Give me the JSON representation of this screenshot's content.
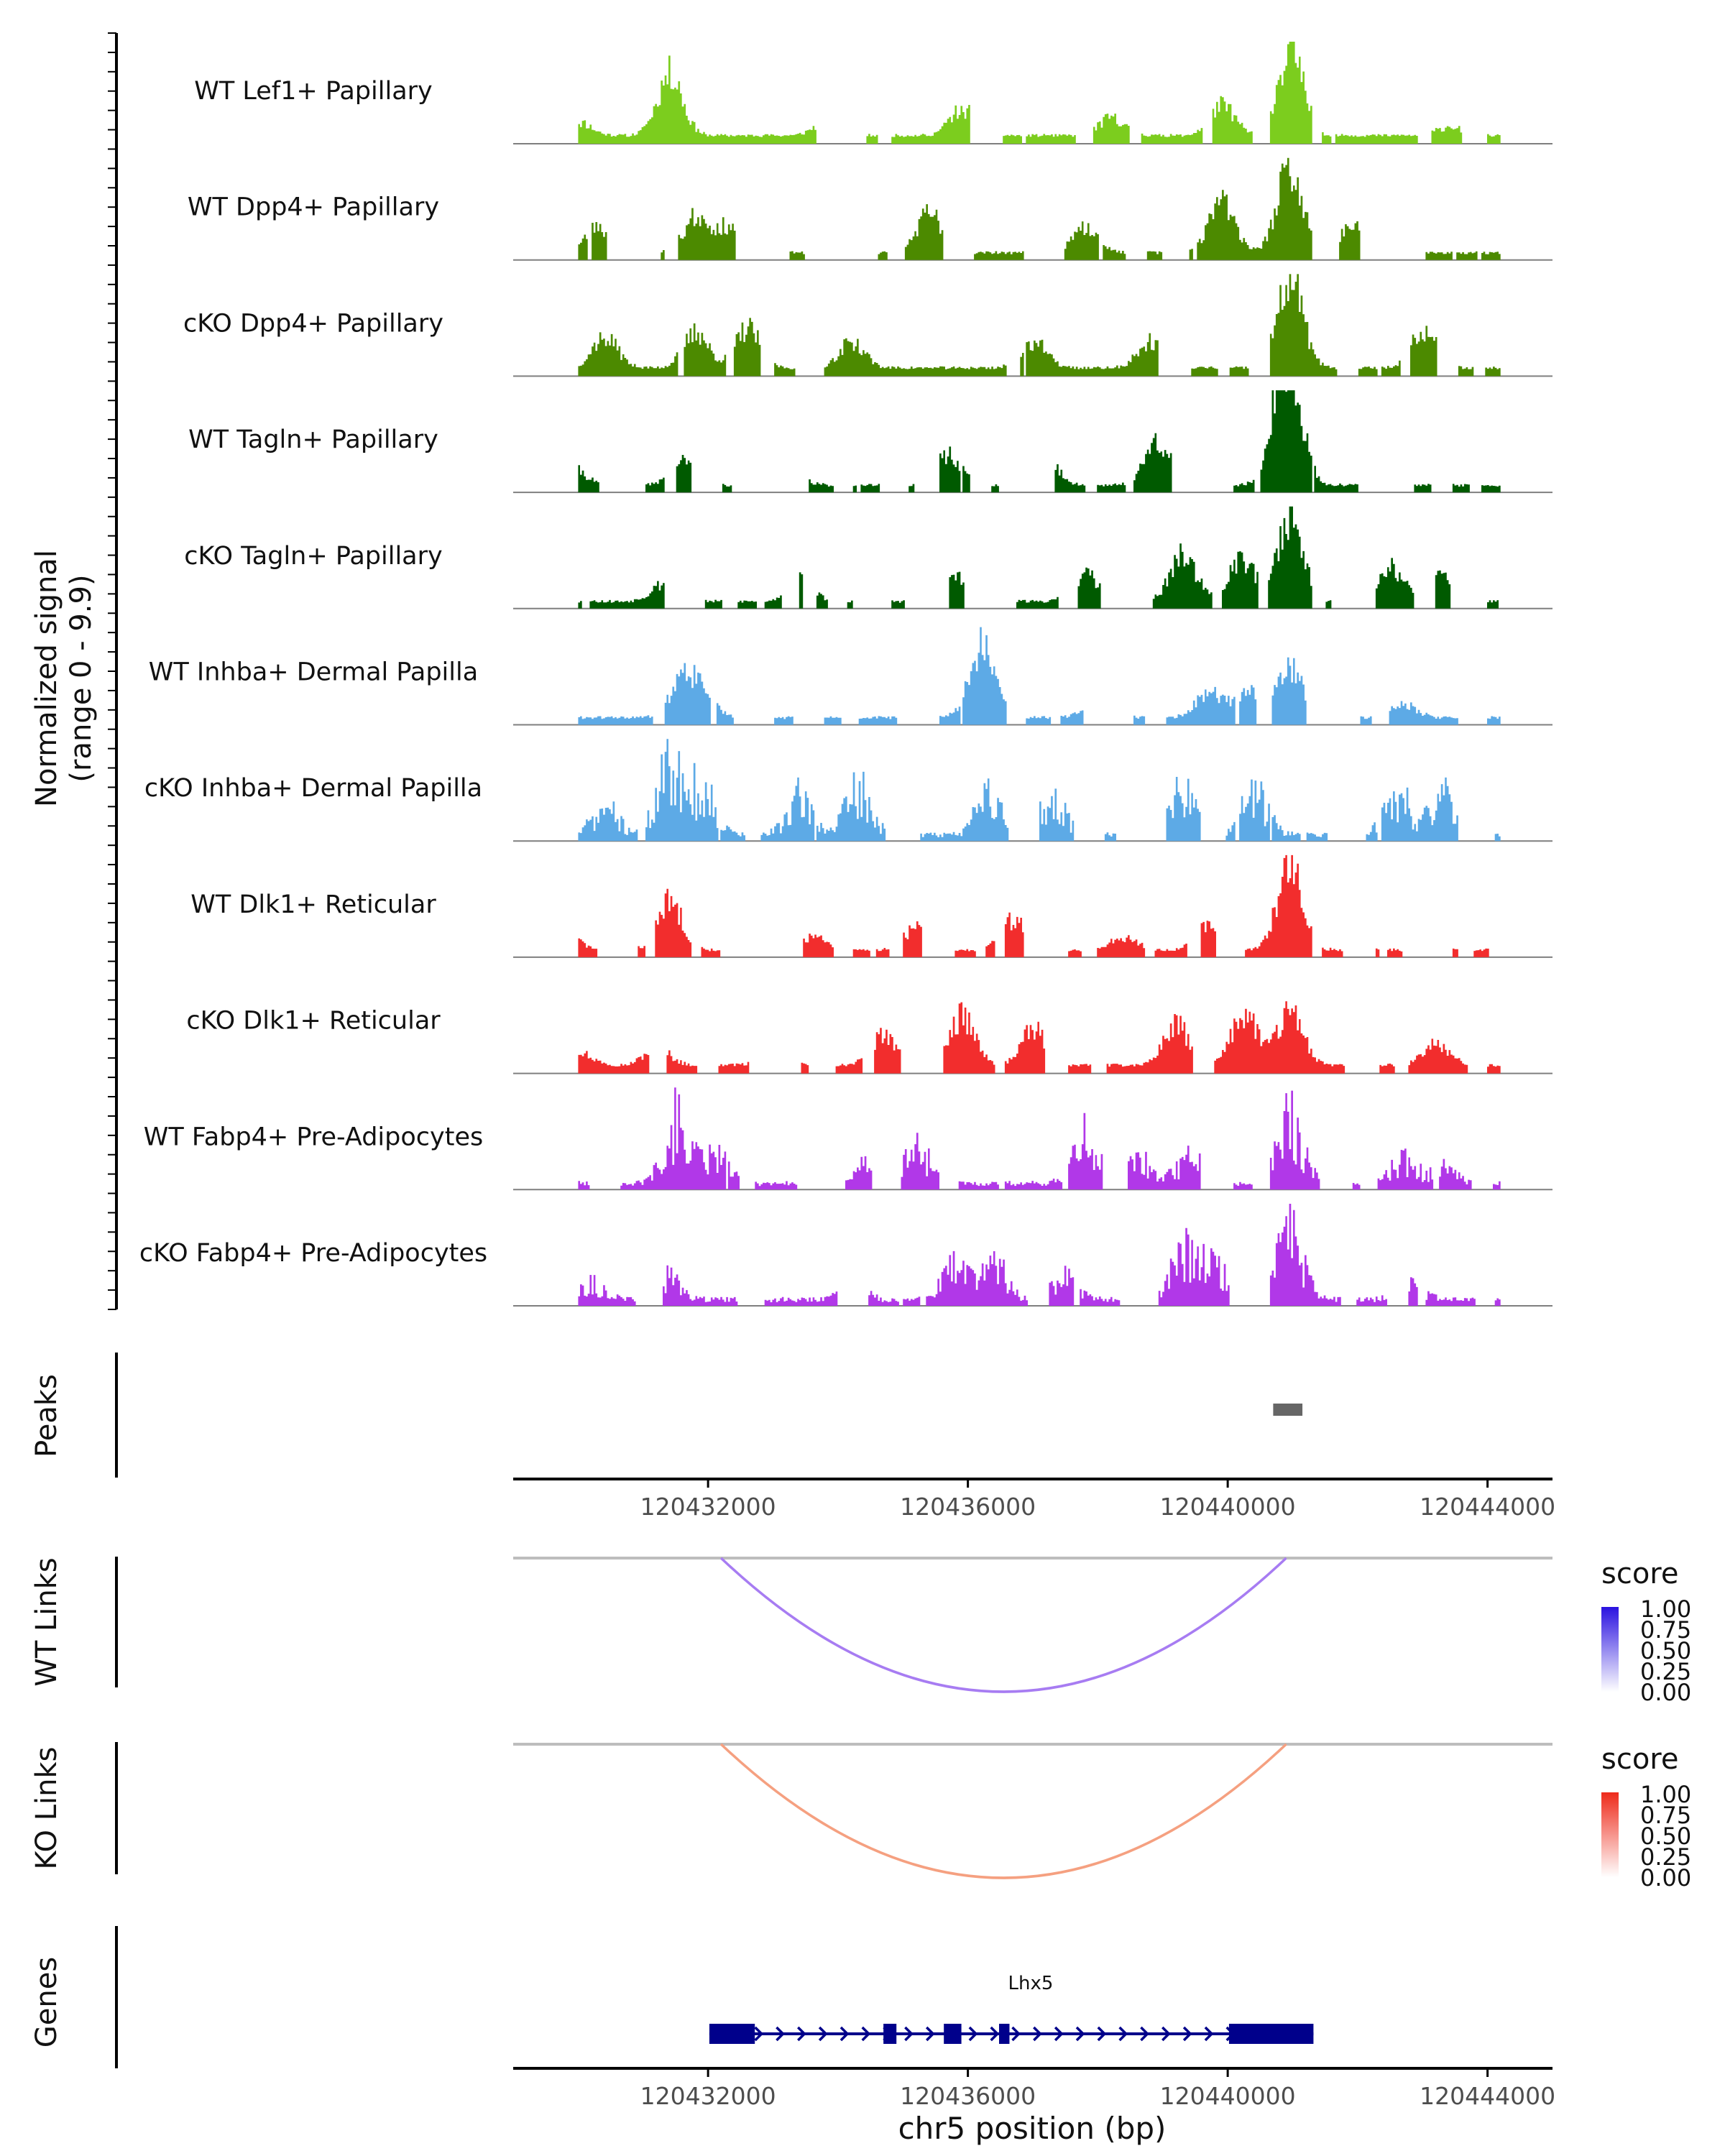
{
  "chart_data": {
    "type": "area",
    "chromosome": "chr5",
    "xlim": [
      120429000,
      120445000
    ],
    "signal_range": [
      0,
      9.9
    ],
    "ylabel_signal": "Normalized signal",
    "ylabel_signal_range": "(range 0 - 9.9)",
    "tracks": [
      {
        "name": "WT Lef1+ Papillary",
        "color": "#7CCD1E",
        "density": "dense",
        "seed": 11,
        "peaks": [
          [
            120430000,
            0.15
          ],
          [
            120431400,
            0.7
          ],
          [
            120433800,
            0.15
          ],
          [
            120435900,
            0.3
          ],
          [
            120438200,
            0.2
          ],
          [
            120439900,
            0.35
          ],
          [
            120440950,
            1.0
          ],
          [
            120443400,
            0.1
          ]
        ]
      },
      {
        "name": "WT Dpp4+ Papillary",
        "color": "#4C8A00",
        "density": "sparse",
        "seed": 23,
        "peaks": [
          [
            120430300,
            0.3
          ],
          [
            120431800,
            0.4
          ],
          [
            120432300,
            0.3
          ],
          [
            120435400,
            0.45
          ],
          [
            120437800,
            0.3
          ],
          [
            120439900,
            0.6
          ],
          [
            120440950,
            1.0
          ],
          [
            120441900,
            0.3
          ]
        ]
      },
      {
        "name": "cKO Dpp4+ Papillary",
        "color": "#4C8A00",
        "density": "dense",
        "seed": 37,
        "peaks": [
          [
            120430400,
            0.35
          ],
          [
            120431800,
            0.4
          ],
          [
            120432600,
            0.45
          ],
          [
            120434200,
            0.3
          ],
          [
            120437000,
            0.3
          ],
          [
            120438800,
            0.3
          ],
          [
            120440950,
            1.0
          ],
          [
            120443000,
            0.45
          ]
        ]
      },
      {
        "name": "WT Tagln+ Papillary",
        "color": "#005A00",
        "density": "sparse",
        "seed": 41,
        "peaks": [
          [
            120429900,
            0.2
          ],
          [
            120431600,
            0.3
          ],
          [
            120433200,
            0.25
          ],
          [
            120435700,
            0.35
          ],
          [
            120437200,
            0.25
          ],
          [
            120438900,
            0.5
          ],
          [
            120440800,
            0.6
          ],
          [
            120440950,
            1.0
          ]
        ]
      },
      {
        "name": "cKO Tagln+ Papillary",
        "color": "#005A00",
        "density": "sparse",
        "seed": 53,
        "peaks": [
          [
            120431300,
            0.2
          ],
          [
            120433400,
            0.25
          ],
          [
            120435800,
            0.3
          ],
          [
            120437800,
            0.3
          ],
          [
            120439300,
            0.55
          ],
          [
            120440200,
            0.5
          ],
          [
            120440950,
            1.0
          ],
          [
            120442500,
            0.4
          ],
          [
            120443300,
            0.3
          ]
        ]
      },
      {
        "name": "WT Inhba+ Dermal Papilla",
        "color": "#5DAAE6",
        "density": "sparse",
        "seed": 61,
        "peaks": [
          [
            120431600,
            0.4
          ],
          [
            120431900,
            0.25
          ],
          [
            120436200,
            0.8
          ],
          [
            120438000,
            0.25
          ],
          [
            120439700,
            0.3
          ],
          [
            120440300,
            0.3
          ],
          [
            120440950,
            0.55
          ],
          [
            120442700,
            0.15
          ]
        ]
      },
      {
        "name": "cKO Inhba+ Dermal Papilla",
        "color": "#5DAAE6",
        "density": "spiky",
        "seed": 71,
        "peaks": [
          [
            120430400,
            0.35
          ],
          [
            120431400,
            0.9
          ],
          [
            120431900,
            0.6
          ],
          [
            120433400,
            0.5
          ],
          [
            120434300,
            0.6
          ],
          [
            120436300,
            0.5
          ],
          [
            120437300,
            0.5
          ],
          [
            120439300,
            0.65
          ],
          [
            120440400,
            0.55
          ],
          [
            120442600,
            0.55
          ],
          [
            120443300,
            0.5
          ]
        ]
      },
      {
        "name": "WT Dlk1+ Reticular",
        "color": "#F22D2D",
        "density": "sparse",
        "seed": 83,
        "peaks": [
          [
            120429800,
            0.2
          ],
          [
            120431400,
            0.55
          ],
          [
            120433600,
            0.15
          ],
          [
            120435200,
            0.25
          ],
          [
            120436700,
            0.35
          ],
          [
            120438400,
            0.15
          ],
          [
            120439700,
            0.3
          ],
          [
            120440950,
            1.0
          ]
        ]
      },
      {
        "name": "cKO Dlk1+ Reticular",
        "color": "#F22D2D",
        "density": "dense",
        "seed": 97,
        "peaks": [
          [
            120430000,
            0.15
          ],
          [
            120431200,
            0.2
          ],
          [
            120433000,
            0.2
          ],
          [
            120434700,
            0.35
          ],
          [
            120435900,
            0.55
          ],
          [
            120437000,
            0.4
          ],
          [
            120439200,
            0.45
          ],
          [
            120440250,
            0.6
          ],
          [
            120440950,
            0.6
          ],
          [
            120443200,
            0.25
          ]
        ]
      },
      {
        "name": "WT Fabp4+ Pre-Adipocytes",
        "color": "#B138E8",
        "density": "spiky",
        "seed": 101,
        "peaks": [
          [
            120431500,
            0.85
          ],
          [
            120432100,
            0.35
          ],
          [
            120434400,
            0.3
          ],
          [
            120435200,
            0.5
          ],
          [
            120437800,
            0.65
          ],
          [
            120438600,
            0.35
          ],
          [
            120439400,
            0.35
          ],
          [
            120440950,
            0.85
          ],
          [
            120442700,
            0.3
          ],
          [
            120443300,
            0.2
          ]
        ]
      },
      {
        "name": "cKO Fabp4+ Pre-Adipocytes",
        "color": "#B138E8",
        "density": "spiky",
        "seed": 113,
        "peaks": [
          [
            120430200,
            0.2
          ],
          [
            120431400,
            0.3
          ],
          [
            120434200,
            0.2
          ],
          [
            120435800,
            0.45
          ],
          [
            120436400,
            0.5
          ],
          [
            120437500,
            0.3
          ],
          [
            120439300,
            0.6
          ],
          [
            120439800,
            0.5
          ],
          [
            120440950,
            1.0
          ],
          [
            120442800,
            0.2
          ]
        ]
      }
    ],
    "peaks_track": {
      "label": "Peaks",
      "regions": [
        [
          120440700,
          120441150
        ]
      ],
      "color": "#666666"
    },
    "axis_ticks": [
      "120432000",
      "120436000",
      "120440000",
      "120444000"
    ],
    "axis_tick_values": [
      120432000,
      120436000,
      120440000,
      120444000
    ],
    "xlabel": "chr5 position (bp)",
    "links": [
      {
        "label": "WT Links",
        "start": 120432200,
        "end": 120440900,
        "score": 0.5,
        "color": "#A77CF2",
        "legend_title": "score",
        "legend_low": "#ffffff",
        "legend_high": "#2A12E0"
      },
      {
        "label": "KO Links",
        "start": 120432200,
        "end": 120440900,
        "score": 0.5,
        "color": "#F5A080",
        "legend_title": "score",
        "legend_low": "#ffffff",
        "legend_high": "#EE2A1A"
      }
    ],
    "legend_ticks": [
      "1.00",
      "0.75",
      "0.50",
      "0.25",
      "0.00"
    ],
    "genes_track": {
      "label": "Genes",
      "gene": "Lhx5",
      "color": "#00008B",
      "start": 120432020,
      "end": 120441320,
      "exons": [
        [
          120432020,
          120432720
        ],
        [
          120434700,
          120434900
        ],
        [
          120435630,
          120435900
        ],
        [
          120436480,
          120436640
        ],
        [
          120440020,
          120441320
        ]
      ]
    }
  }
}
